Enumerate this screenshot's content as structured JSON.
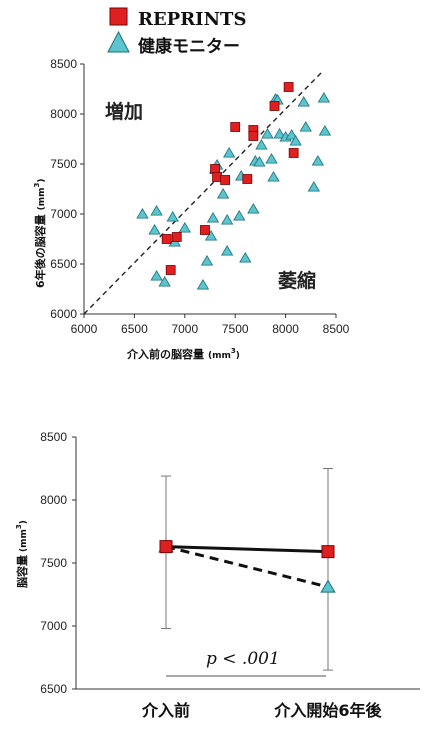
{
  "legend": {
    "items": [
      {
        "label": "REPRINTS",
        "marker": "square",
        "color": "#e02020"
      },
      {
        "label": "健康モニター",
        "marker": "triangle",
        "color": "#5bc4cf"
      }
    ]
  },
  "chart_data": [
    {
      "type": "scatter",
      "xlabel": "介入前の脳容量",
      "xunit": "(mm",
      "xunit_sup": "3",
      "xunit_end": ")",
      "ylabel": "6年後の脳容量",
      "yunit": "(mm",
      "yunit_sup": "3",
      "yunit_end": ")",
      "xlim": [
        6000,
        8500
      ],
      "ylim": [
        6000,
        8500
      ],
      "xticks": [
        "6000",
        "6500",
        "7000",
        "7500",
        "8000",
        "8500"
      ],
      "yticks": [
        "6000",
        "6500",
        "7000",
        "7500",
        "8000",
        "8500"
      ],
      "identity_line": true,
      "annotations": {
        "upper": "増加",
        "lower": "萎縮"
      },
      "series": [
        {
          "name": "REPRINTS",
          "marker": "square",
          "color": "#e02020",
          "points": [
            [
              6820,
              6750
            ],
            [
              6920,
              6770
            ],
            [
              6860,
              6440
            ],
            [
              7200,
              6840
            ],
            [
              7300,
              7450
            ],
            [
              7320,
              7370
            ],
            [
              7400,
              7340
            ],
            [
              7500,
              7870
            ],
            [
              7620,
              7350
            ],
            [
              7680,
              7840
            ],
            [
              7680,
              7780
            ],
            [
              7890,
              8080
            ],
            [
              8030,
              8270
            ],
            [
              8080,
              7610
            ]
          ]
        },
        {
          "name": "健康モニター",
          "marker": "triangle",
          "color": "#5bc4cf",
          "points": [
            [
              6580,
              7000
            ],
            [
              6720,
              7030
            ],
            [
              6700,
              6840
            ],
            [
              6880,
              6970
            ],
            [
              6720,
              6380
            ],
            [
              6800,
              6320
            ],
            [
              6900,
              6720
            ],
            [
              7000,
              6860
            ],
            [
              7180,
              6290
            ],
            [
              7220,
              6530
            ],
            [
              7260,
              6780
            ],
            [
              7280,
              6960
            ],
            [
              7300,
              7450
            ],
            [
              7320,
              7490
            ],
            [
              7380,
              7200
            ],
            [
              7420,
              6940
            ],
            [
              7420,
              6630
            ],
            [
              7440,
              7610
            ],
            [
              7540,
              6980
            ],
            [
              7560,
              7380
            ],
            [
              7600,
              6560
            ],
            [
              7680,
              7050
            ],
            [
              7700,
              7530
            ],
            [
              7740,
              7520
            ],
            [
              7760,
              7690
            ],
            [
              7820,
              7800
            ],
            [
              7860,
              7550
            ],
            [
              7880,
              7370
            ],
            [
              7900,
              8150
            ],
            [
              7920,
              8140
            ],
            [
              7940,
              7800
            ],
            [
              8000,
              7770
            ],
            [
              8060,
              7790
            ],
            [
              8100,
              7730
            ],
            [
              8180,
              8120
            ],
            [
              8200,
              7870
            ],
            [
              8280,
              7270
            ],
            [
              8320,
              7530
            ],
            [
              8380,
              8160
            ],
            [
              8390,
              7830
            ]
          ]
        }
      ]
    },
    {
      "type": "line",
      "ylabel": "脳容量",
      "yunit": "(mm",
      "yunit_sup": "3",
      "yunit_end": ")",
      "ylim": [
        6500,
        8500
      ],
      "yticks": [
        "6500",
        "7000",
        "7500",
        "8000",
        "8500"
      ],
      "categories": [
        "介入前",
        "介入開始6年後"
      ],
      "series": [
        {
          "name": "REPRINTS",
          "marker": "square",
          "color": "#e02020",
          "line_style": "solid",
          "values": [
            7630,
            7590
          ],
          "error_low": [
            6980,
            6650
          ],
          "error_high": [
            8190,
            8250
          ]
        },
        {
          "name": "健康モニター",
          "marker": "triangle",
          "color": "#5bc4cf",
          "line_style": "dashed",
          "values": [
            7630,
            7310
          ]
        }
      ],
      "annotation": "p < .001"
    }
  ]
}
